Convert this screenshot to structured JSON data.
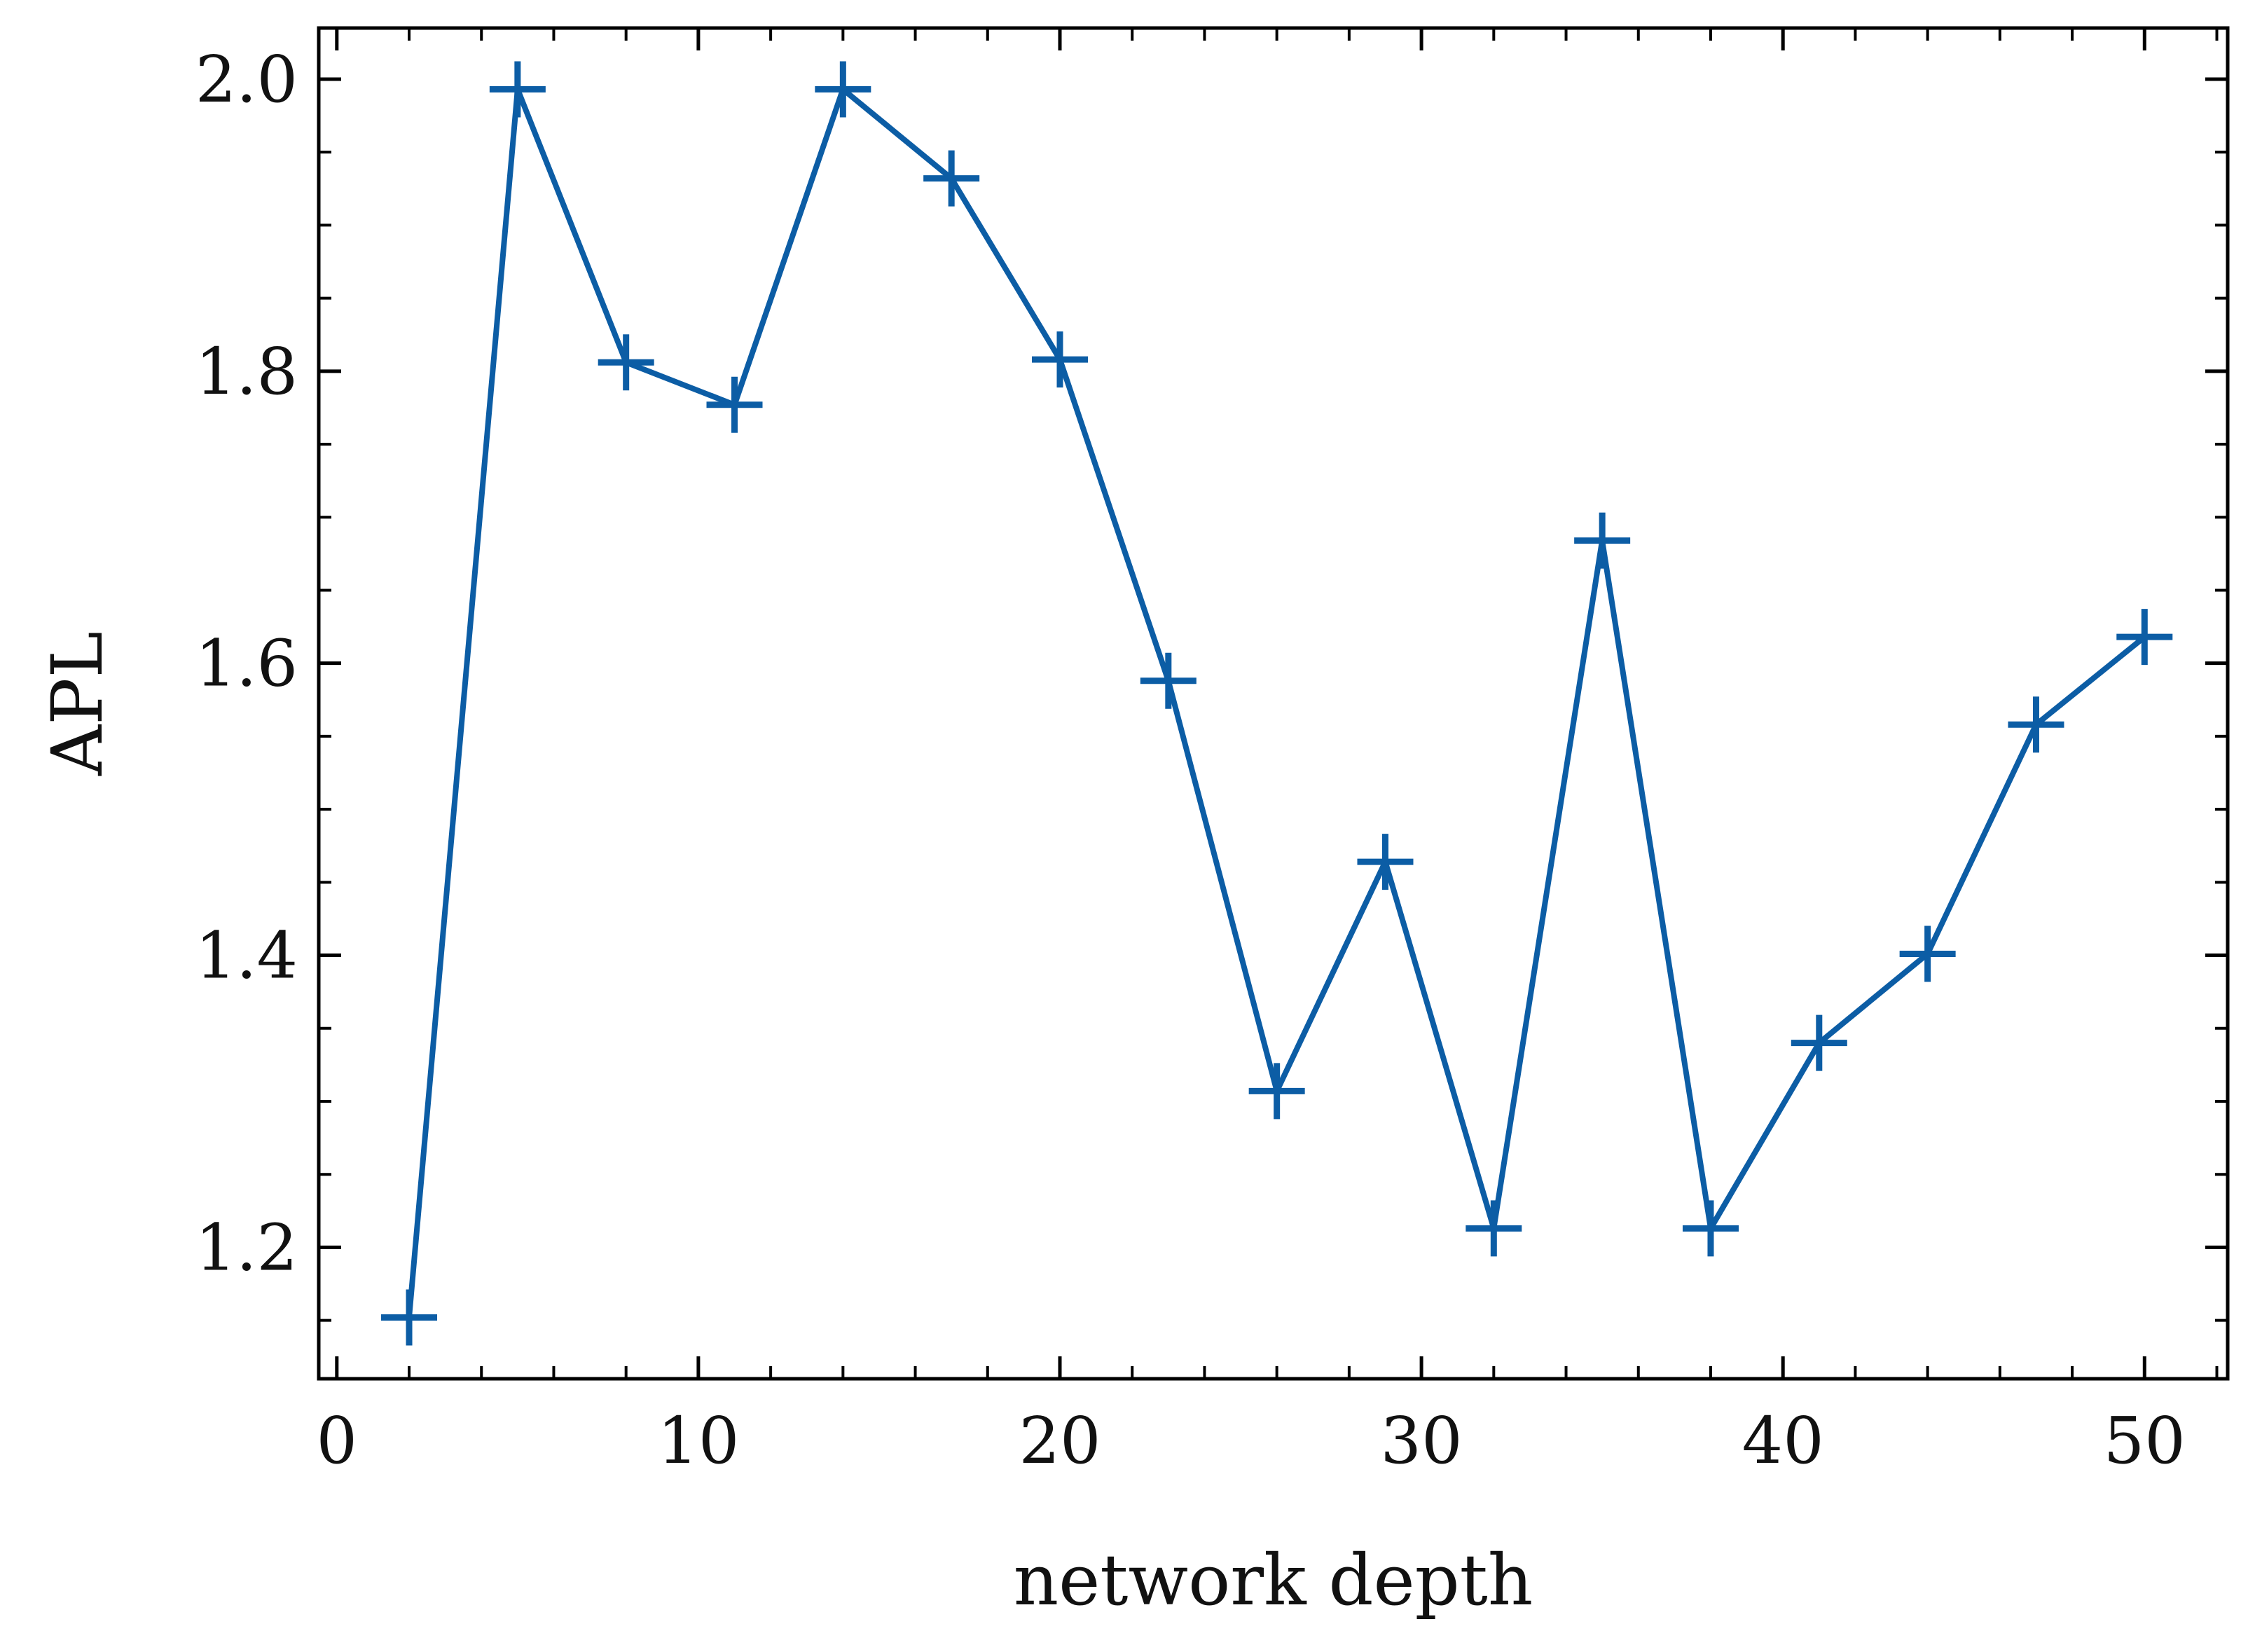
{
  "chart_data": {
    "type": "line",
    "title": "",
    "xlabel": "network depth",
    "ylabel": "APL",
    "xlim": [
      -0.5,
      52.3
    ],
    "ylim": [
      1.11,
      2.035
    ],
    "x_ticks": [
      0,
      10,
      20,
      30,
      40,
      50
    ],
    "x_tick_labels": [
      "0",
      "10",
      "20",
      "30",
      "40",
      "50"
    ],
    "x_minor_step": 2,
    "y_ticks": [
      1.2,
      1.4,
      1.6,
      1.8,
      2.0
    ],
    "y_tick_labels": [
      "1.2",
      "1.4",
      "1.6",
      "1.8",
      "2.0"
    ],
    "y_minor_step": 0.05,
    "grid": false,
    "series": [
      {
        "color": "#0C5DA5",
        "marker": "plus",
        "x": [
          2,
          5,
          8,
          11,
          14,
          17,
          20,
          23,
          26,
          29,
          32,
          35,
          38,
          41,
          44,
          47,
          50
        ],
        "y": [
          1.152,
          1.993,
          1.806,
          1.777,
          1.993,
          1.932,
          1.808,
          1.588,
          1.307,
          1.464,
          1.213,
          1.684,
          1.213,
          1.34,
          1.401,
          1.558,
          1.618
        ]
      }
    ]
  }
}
